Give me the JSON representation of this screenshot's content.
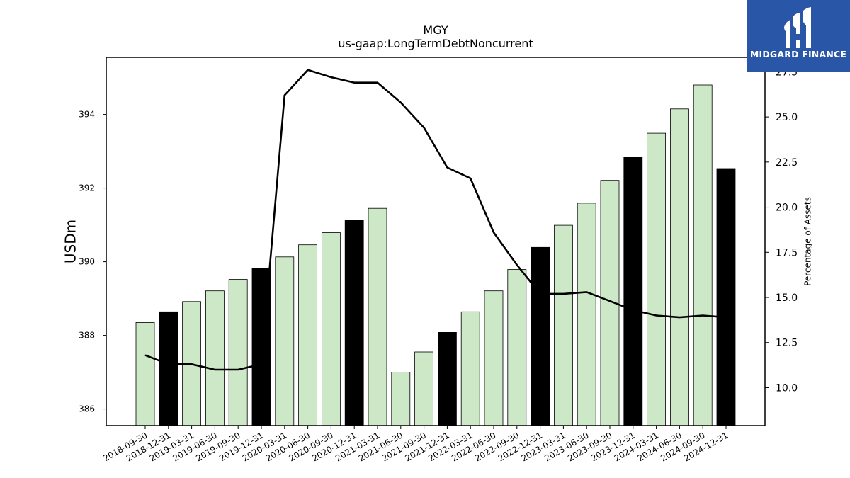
{
  "header": {
    "ticker": "MGY",
    "subtitle": "us-gaap:LongTermDebtNoncurrent"
  },
  "logo": {
    "text": "MIDGARD FINANCE",
    "background": "#2a56a8"
  },
  "chart_data": {
    "type": "bar",
    "title": "MGY",
    "subtitle": "us-gaap:LongTermDebtNoncurrent",
    "ylabel": "USDm",
    "y2label": "Percentage of Assets",
    "ylim": [
      385.55,
      395.55
    ],
    "y2lim": [
      7.9,
      28.3
    ],
    "yticks": [
      386,
      388,
      390,
      392,
      394
    ],
    "y2ticks": [
      "10.0",
      "12.5",
      "15.0",
      "17.5",
      "20.0",
      "22.5",
      "25.0",
      "27.5"
    ],
    "categories": [
      "2018-09-30",
      "2018-12-31",
      "2019-03-31",
      "2019-06-30",
      "2019-09-30",
      "2019-12-31",
      "2020-03-31",
      "2020-06-30",
      "2020-09-30",
      "2020-12-31",
      "2021-03-31",
      "2021-06-30",
      "2021-09-30",
      "2021-12-31",
      "2022-03-31",
      "2022-06-30",
      "2022-09-30",
      "2022-12-31",
      "2023-03-31",
      "2023-06-30",
      "2023-09-30",
      "2023-12-31",
      "2024-03-31",
      "2024-06-30",
      "2024-09-30",
      "2024-12-31"
    ],
    "series": [
      {
        "type": "bar",
        "values": [
          388.35,
          388.64,
          388.92,
          389.21,
          389.52,
          389.83,
          390.13,
          390.46,
          390.79,
          391.12,
          391.45,
          387.0,
          387.55,
          388.08,
          388.64,
          389.21,
          389.79,
          390.39,
          390.99,
          391.59,
          392.21,
          392.85,
          393.49,
          394.15,
          394.8,
          392.53
        ],
        "highlight": [
          false,
          true,
          false,
          false,
          false,
          true,
          false,
          false,
          false,
          true,
          false,
          false,
          false,
          true,
          false,
          false,
          false,
          true,
          false,
          false,
          false,
          true,
          false,
          false,
          false,
          true
        ]
      },
      {
        "type": "line",
        "axis": "right",
        "values": [
          11.8,
          11.3,
          11.3,
          11.0,
          11.0,
          11.3,
          26.2,
          27.6,
          27.2,
          26.9,
          26.9,
          25.8,
          24.4,
          22.2,
          21.6,
          18.6,
          16.8,
          15.2,
          15.2,
          15.3,
          14.8,
          14.3,
          14.0,
          13.9,
          14.0,
          13.9
        ]
      }
    ],
    "colors": {
      "bar_fill": "#cde8c7",
      "bar_highlight": "#000000",
      "bar_edge": "#000000",
      "line": "#000000"
    }
  }
}
